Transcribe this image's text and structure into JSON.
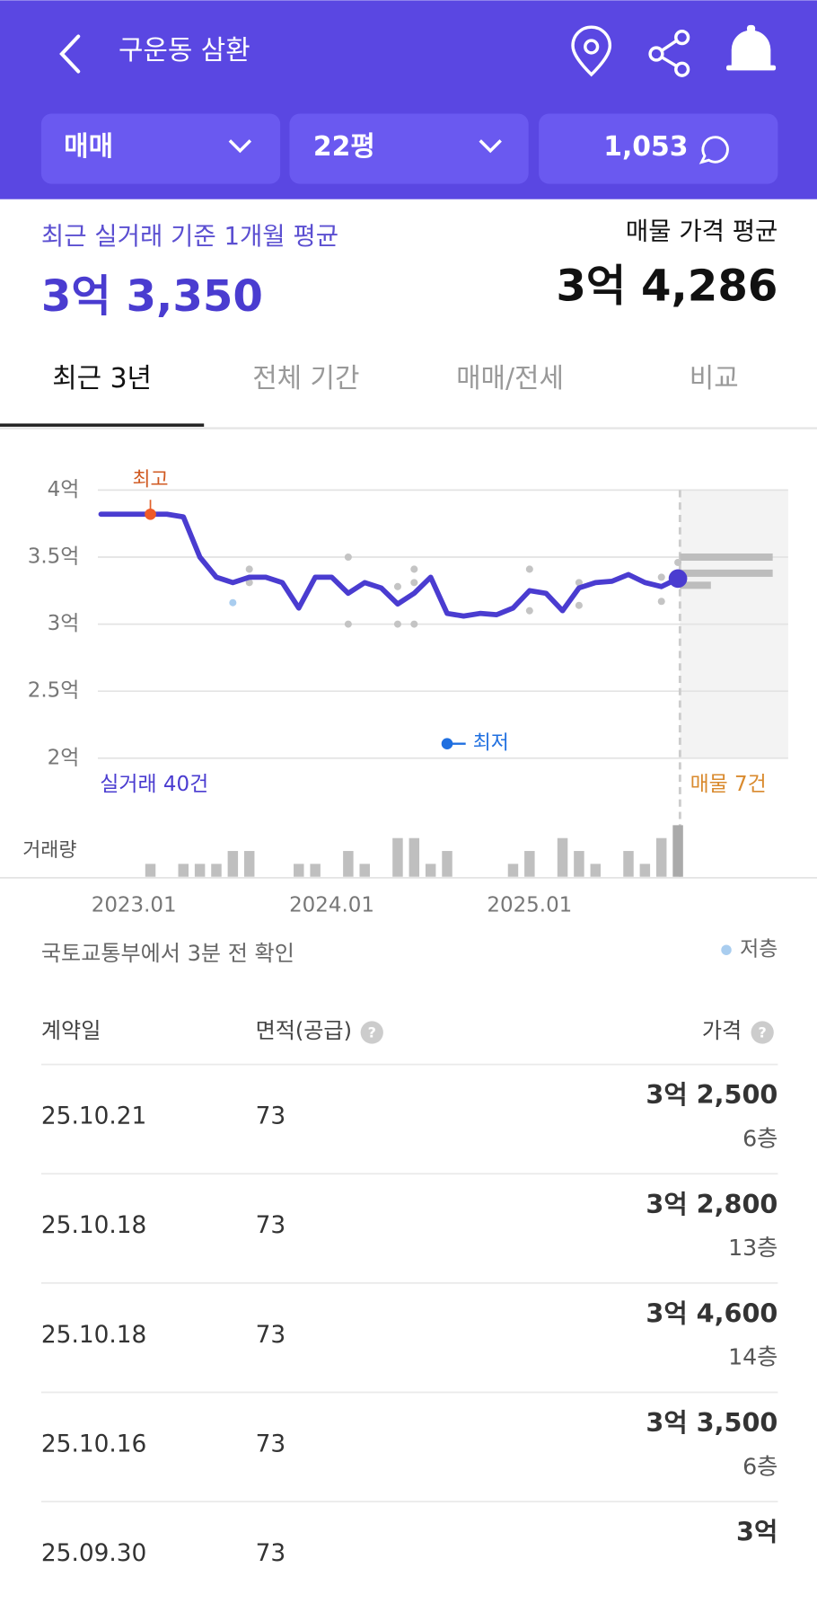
{
  "header": {
    "title": "구운동 삼환"
  },
  "filters": [
    "매매",
    "22평",
    "1,053"
  ],
  "summary": {
    "recent_label": "최근 실거래 기준 1개월 평균",
    "recent_value": "3억 3,350",
    "listing_label": "매물 가격 평균",
    "listing_value": "3억 4,286"
  },
  "tabs": [
    "최근 3년",
    "전체 기간",
    "매매/전세",
    "비교"
  ],
  "chart": {
    "type": "line",
    "ylim": [
      2,
      4
    ],
    "yticks": [
      {
        "value": 4,
        "label": "4억"
      },
      {
        "value": 3.5,
        "label": "3.5억"
      },
      {
        "value": 3,
        "label": "3억"
      },
      {
        "value": 2.5,
        "label": "2.5억"
      },
      {
        "value": 2,
        "label": "2억"
      }
    ],
    "xticks": [
      "2023.01",
      "2024.01",
      "2025.01"
    ],
    "x": [
      "2022.11",
      "2022.12",
      "2023.01",
      "2023.02",
      "2023.03",
      "2023.04",
      "2023.05",
      "2023.06",
      "2023.07",
      "2023.08",
      "2023.09",
      "2023.10",
      "2023.11",
      "2023.12",
      "2024.01",
      "2024.02",
      "2024.03",
      "2024.04",
      "2024.05",
      "2024.06",
      "2024.07",
      "2024.08",
      "2024.09",
      "2024.10",
      "2024.11",
      "2024.12",
      "2025.01",
      "2025.02",
      "2025.03",
      "2025.04",
      "2025.05",
      "2025.06",
      "2025.07",
      "2025.08",
      "2025.09",
      "2025.10"
    ],
    "values": [
      3.82,
      3.82,
      3.82,
      3.82,
      3.82,
      3.8,
      3.5,
      3.35,
      3.31,
      3.35,
      3.35,
      3.31,
      3.12,
      3.35,
      3.35,
      3.23,
      3.31,
      3.27,
      3.15,
      3.23,
      3.35,
      3.08,
      3.06,
      3.08,
      3.07,
      3.12,
      3.25,
      3.23,
      3.1,
      3.27,
      3.31,
      3.32,
      3.37,
      3.31,
      3.28,
      3.34
    ],
    "color": "#4a3cd0",
    "volume": [
      0,
      0,
      0,
      1,
      0,
      1,
      1,
      1,
      2,
      2,
      0,
      0,
      1,
      1,
      0,
      2,
      1,
      0,
      3,
      3,
      1,
      2,
      0,
      0,
      0,
      1,
      2,
      0,
      3,
      2,
      1,
      0,
      2,
      1,
      3,
      4
    ],
    "volume_label": "거래량",
    "trades": {
      "x": [
        "2023.08",
        "2023.08",
        "2024.02",
        "2024.02",
        "2024.05",
        "2024.05",
        "2024.06",
        "2024.06",
        "2024.06",
        "2025.01",
        "2025.01",
        "2025.04",
        "2025.04",
        "2025.09",
        "2025.09",
        "2025.10"
      ],
      "values": [
        3.41,
        3.31,
        3.5,
        3.0,
        3.28,
        3.0,
        3.41,
        3.31,
        3.0,
        3.41,
        3.1,
        3.31,
        3.14,
        3.35,
        3.17,
        3.46
      ]
    },
    "low_floor": {
      "x": [
        "2023.07"
      ],
      "values": [
        3.16
      ]
    },
    "listings": [
      3.5,
      3.38,
      3.29
    ],
    "high": {
      "label": "최고",
      "x": "2023.02",
      "value": 3.82
    },
    "low_label": "최저",
    "trade_count": "실거래 40건",
    "listing_count": "매물 7건"
  },
  "source": "국토교통부에서 3분 전 확인",
  "legend_low_floor": "저층",
  "table": {
    "columns": [
      "계약일",
      "면적(공급)",
      "가격"
    ],
    "rows": [
      [
        "25.10.21",
        "73",
        "3억 2,500",
        "6층"
      ],
      [
        "25.10.18",
        "73",
        "3억 2,800",
        "13층"
      ],
      [
        "25.10.18",
        "73",
        "3억 4,600",
        "14층"
      ],
      [
        "25.10.16",
        "73",
        "3억 3,500",
        "6층"
      ],
      [
        "25.09.30",
        "73",
        "3억"
      ]
    ]
  }
}
